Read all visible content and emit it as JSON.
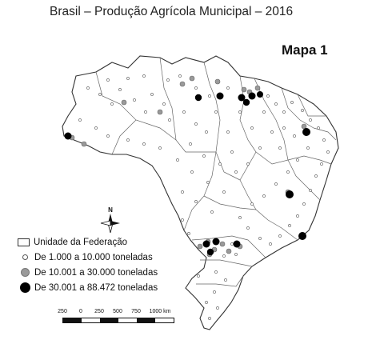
{
  "title": "Brasil – Produção Agrícola Municipal – 2016",
  "map_label": "Mapa 1",
  "legend": {
    "boundary": "Unidade da Federação",
    "small": "De 1.000 a 10.000 toneladas",
    "mid": "De 10.001 a 30.000 toneladas",
    "big": "De 30.001 a 88.472 toneladas"
  },
  "scale": {
    "ticks": [
      "250",
      "0",
      "250",
      "500",
      "750",
      "1000 km"
    ]
  },
  "north_label": "N",
  "colors": {
    "small_fill": "#ffffff",
    "mid_fill": "#9a9a9a",
    "big_fill": "#000000",
    "outline": "#555555"
  }
}
